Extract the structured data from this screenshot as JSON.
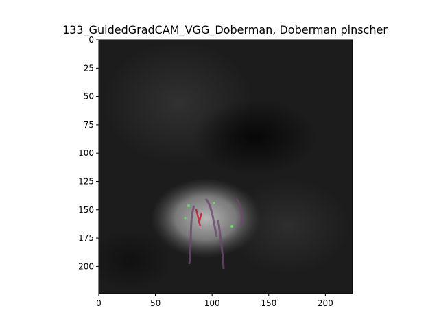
{
  "figure": {
    "title": "133_GuidedGradCAM_VGG_Doberman, Doberman pinscher"
  },
  "image": {
    "description_icon": "guided-gradcam-heatmap-image",
    "x_range": [
      0,
      224
    ],
    "y_range": [
      0,
      224
    ],
    "y_inverted": true
  },
  "axes": {
    "x_ticks": [
      0,
      50,
      100,
      150,
      200
    ],
    "y_ticks": [
      0,
      25,
      50,
      75,
      100,
      125,
      150,
      175,
      200
    ]
  },
  "colors": {
    "frame": "#000000",
    "background_dark": "#1a1a1a",
    "highlight": "#9a9a9a"
  }
}
